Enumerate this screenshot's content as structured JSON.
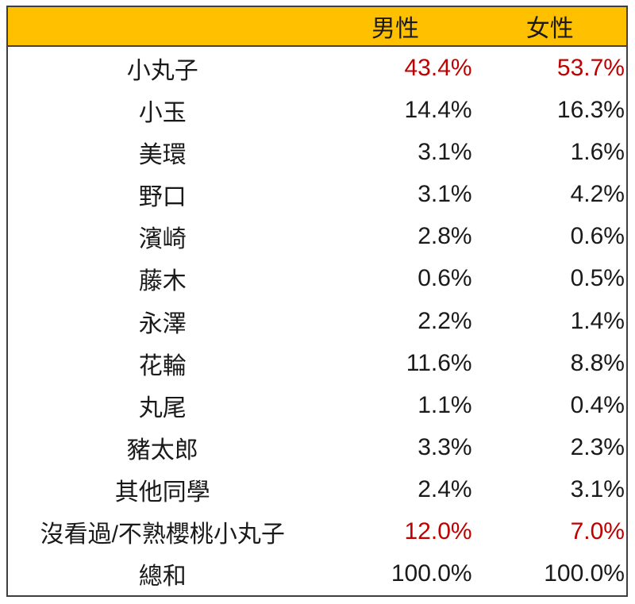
{
  "colors": {
    "page-bg": "#FFFFFF",
    "header-bg": "#FFC000",
    "border": "#3F3F3F",
    "text": "#1A1A1A",
    "highlight": "#C00000"
  },
  "table": {
    "columns": [
      "",
      "男性",
      "女性"
    ],
    "rows": [
      {
        "name": "小丸子",
        "male": "43.4%",
        "female": "53.7%",
        "highlight": true
      },
      {
        "name": "小玉",
        "male": "14.4%",
        "female": "16.3%",
        "highlight": false
      },
      {
        "name": "美環",
        "male": "3.1%",
        "female": "1.6%",
        "highlight": false
      },
      {
        "name": "野口",
        "male": "3.1%",
        "female": "4.2%",
        "highlight": false
      },
      {
        "name": "濱崎",
        "male": "2.8%",
        "female": "0.6%",
        "highlight": false
      },
      {
        "name": "藤木",
        "male": "0.6%",
        "female": "0.5%",
        "highlight": false
      },
      {
        "name": "永澤",
        "male": "2.2%",
        "female": "1.4%",
        "highlight": false
      },
      {
        "name": "花輪",
        "male": "11.6%",
        "female": "8.8%",
        "highlight": false
      },
      {
        "name": "丸尾",
        "male": "1.1%",
        "female": "0.4%",
        "highlight": false
      },
      {
        "name": "豬太郎",
        "male": "3.3%",
        "female": "2.3%",
        "highlight": false
      },
      {
        "name": "其他同學",
        "male": "2.4%",
        "female": "3.1%",
        "highlight": false
      },
      {
        "name": "沒看過/不熟櫻桃小丸子",
        "male": "12.0%",
        "female": "7.0%",
        "highlight": true
      },
      {
        "name": "總和",
        "male": "100.0%",
        "female": "100.0%",
        "highlight": false
      }
    ]
  },
  "chart_data": {
    "type": "table",
    "title": "",
    "categories": [
      "小丸子",
      "小玉",
      "美環",
      "野口",
      "濱崎",
      "藤木",
      "永澤",
      "花輪",
      "丸尾",
      "豬太郎",
      "其他同學",
      "沒看過/不熟櫻桃小丸子",
      "總和"
    ],
    "series": [
      {
        "name": "男性",
        "values": [
          43.4,
          14.4,
          3.1,
          3.1,
          2.8,
          0.6,
          2.2,
          11.6,
          1.1,
          3.3,
          2.4,
          12.0,
          100.0
        ]
      },
      {
        "name": "女性",
        "values": [
          53.7,
          16.3,
          1.6,
          4.2,
          0.6,
          0.5,
          1.4,
          8.8,
          0.4,
          2.3,
          3.1,
          7.0,
          100.0
        ]
      }
    ],
    "unit": "%",
    "notes": "values for 小丸子 and 沒看過/不熟櫻桃小丸子 rows rendered in red"
  }
}
